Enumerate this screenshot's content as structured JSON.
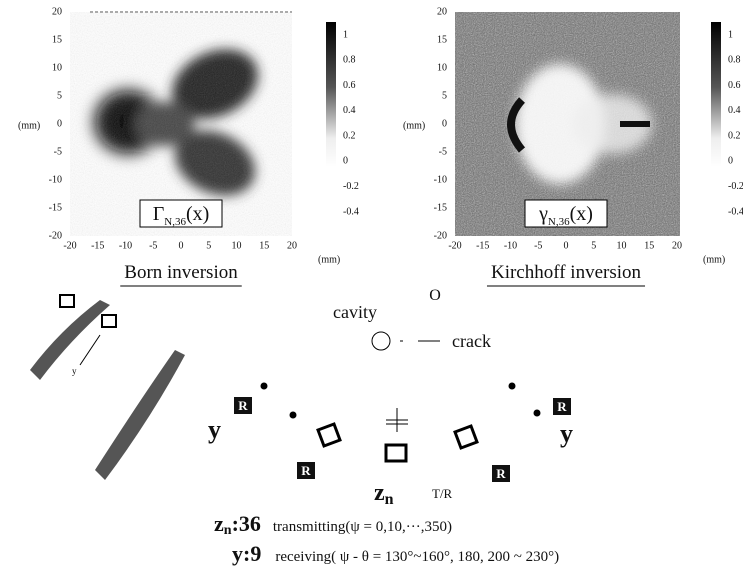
{
  "panels": [
    {
      "y_label": "(mm)",
      "x_label": "(mm)",
      "yticks": [
        20,
        15,
        10,
        5,
        0,
        -5,
        -10,
        -15,
        -20
      ],
      "xticks": [
        -20,
        -15,
        -10,
        -5,
        0,
        5,
        10,
        15,
        20
      ],
      "colorbar_ticks": [
        1,
        0.8,
        0.6,
        0.4,
        0.2,
        0,
        -0.2,
        -0.4
      ],
      "inset_symbol": "Γ",
      "inset_subscript": "N,36",
      "inset_arg": "(x)",
      "caption": "Born inversion"
    },
    {
      "y_label": "(mm)",
      "x_label": "(mm)",
      "yticks": [
        20,
        15,
        10,
        5,
        0,
        -5,
        -10,
        -15,
        -20
      ],
      "xticks": [
        -20,
        -15,
        -10,
        -5,
        0,
        5,
        10,
        15,
        20
      ],
      "colorbar_ticks": [
        1,
        0.8,
        0.6,
        0.4,
        0.2,
        0,
        -0.2,
        -0.4
      ],
      "inset_symbol": "γ",
      "inset_subscript": "N,36",
      "inset_arg": "(x)",
      "caption": "Kirchhoff inversion"
    }
  ],
  "diagram": {
    "origin": "O",
    "cavity": "cavity",
    "crack": "crack",
    "receivers": [
      "R",
      "R",
      "R",
      "R"
    ],
    "y_labels": [
      "y",
      "y"
    ],
    "probe_y": "y",
    "zn": "z",
    "zn_sub": "n",
    "tr": "T/R",
    "legend": [
      {
        "symbol": "z",
        "symbol_sub": "n",
        "count": ":36",
        "text": "transmitting(ψ = 0,10,···,350)"
      },
      {
        "symbol": "y",
        "symbol_sub": "",
        "count": ":9",
        "text": "receiving( ψ - θ = 130°~160°, 180, 200 ~ 230°)"
      }
    ]
  }
}
